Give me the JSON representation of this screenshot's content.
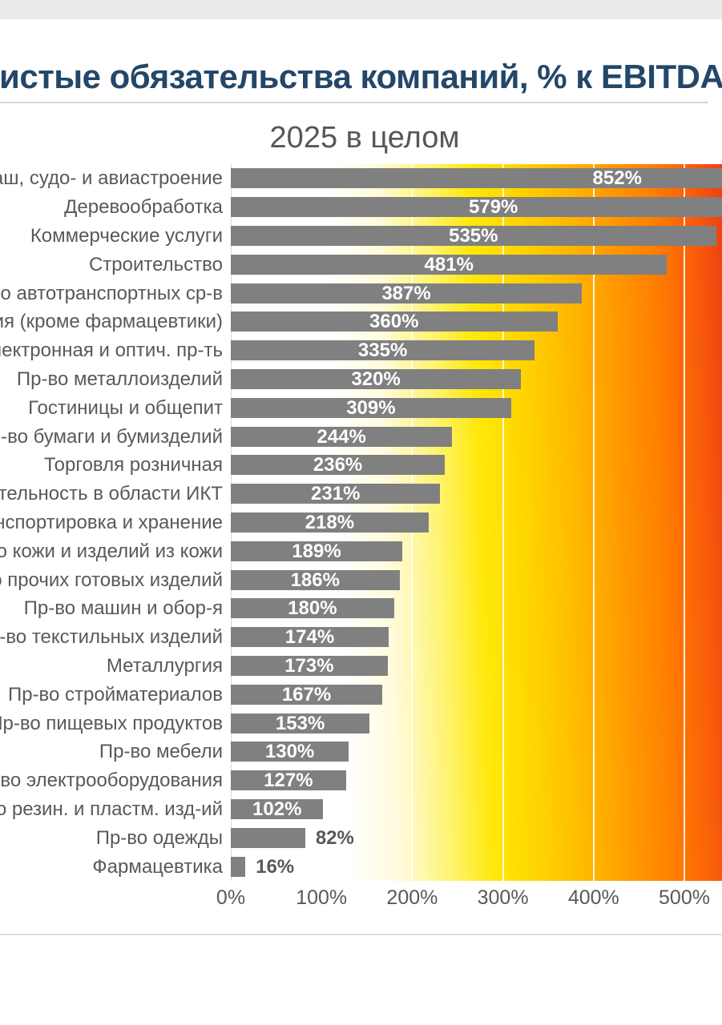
{
  "header": {
    "title": "Чистые обязательства компаний, % к EBITDA"
  },
  "chart_data": {
    "type": "bar",
    "orientation": "horizontal",
    "title": "2025 в целом",
    "unit": "%",
    "categories": [
      "Автомаш, судо- и авиастроение",
      "Деревообработка",
      "Коммерческие услуги",
      "Строительство",
      "Пр-во автотранспортных ср-в",
      "Химия (кроме фармацевтики)",
      "Электронная и оптич. пр-ть",
      "Пр-во металлоизделий",
      "Гостиницы и общепит",
      "Пр-во бумаги и бумизделий",
      "Торговля розничная",
      "Деятельность в области ИКТ",
      "Транспортировка и хранение",
      "Пр-во кожи и изделий из кожи",
      "Пр-во прочих готовых изделий",
      "Пр-во машин и обор-я",
      "Пр-во текстильных изделий",
      "Металлургия",
      "Пр-во стройматериалов",
      "Пр-во пищевых продуктов",
      "Пр-во мебели",
      "Пр-во электрооборудования",
      "Пр-во резин. и пластм. изд-ий",
      "Пр-во одежды",
      "Фармацевтика"
    ],
    "values": [
      852,
      579,
      535,
      481,
      387,
      360,
      335,
      320,
      309,
      244,
      236,
      231,
      218,
      189,
      186,
      180,
      174,
      173,
      167,
      153,
      130,
      127,
      102,
      82,
      16
    ],
    "x_ticks": [
      "0%",
      "100%",
      "200%",
      "300%",
      "400%",
      "500%"
    ],
    "x_tick_values": [
      0,
      100,
      200,
      300,
      400,
      500
    ],
    "xlim": [
      0,
      542
    ],
    "grid": true,
    "legend": "none",
    "colors": {
      "bar": "#808080",
      "value_label_inside": "#ffffff",
      "value_label_outside": "#595959",
      "category_label": "#595959",
      "tick_label": "#595959",
      "title": "#234769",
      "subtitle": "#54575b",
      "gradient_stops": [
        "#ffffff",
        "#fff36e",
        "#ffe80a",
        "#ffb600",
        "#ff7f00",
        "#ee3f12"
      ]
    }
  }
}
